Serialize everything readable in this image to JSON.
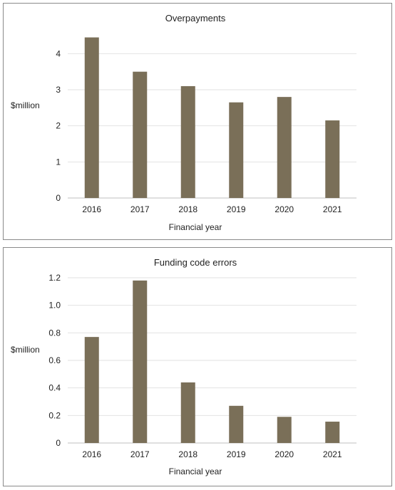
{
  "chart_data": [
    {
      "type": "bar",
      "title": "Overpayments",
      "xlabel": "Financial year",
      "ylabel": "$million",
      "categories": [
        "2016",
        "2017",
        "2018",
        "2019",
        "2020",
        "2021"
      ],
      "values": [
        4.45,
        3.5,
        3.1,
        2.65,
        2.8,
        2.15
      ],
      "ylim": [
        0,
        4.5
      ],
      "yticks": [
        "0",
        "1",
        "2",
        "3",
        "4"
      ],
      "ytick_values": [
        0,
        1,
        2,
        3,
        4
      ],
      "grid": true,
      "bar_color": "#7a6f58",
      "legend": "none"
    },
    {
      "type": "bar",
      "title": "Funding code errors",
      "xlabel": "Financial year",
      "ylabel": "$million",
      "categories": [
        "2016",
        "2017",
        "2018",
        "2019",
        "2020",
        "2021"
      ],
      "values": [
        0.77,
        1.18,
        0.44,
        0.27,
        0.19,
        0.155
      ],
      "ylim": [
        0,
        1.2
      ],
      "yticks": [
        "0",
        "0.2",
        "0.4",
        "0.6",
        "0.8",
        "1.0",
        "1.2"
      ],
      "ytick_values": [
        0,
        0.2,
        0.4,
        0.6,
        0.8,
        1.0,
        1.2
      ],
      "grid": true,
      "bar_color": "#7a6f58",
      "legend": "none"
    }
  ]
}
